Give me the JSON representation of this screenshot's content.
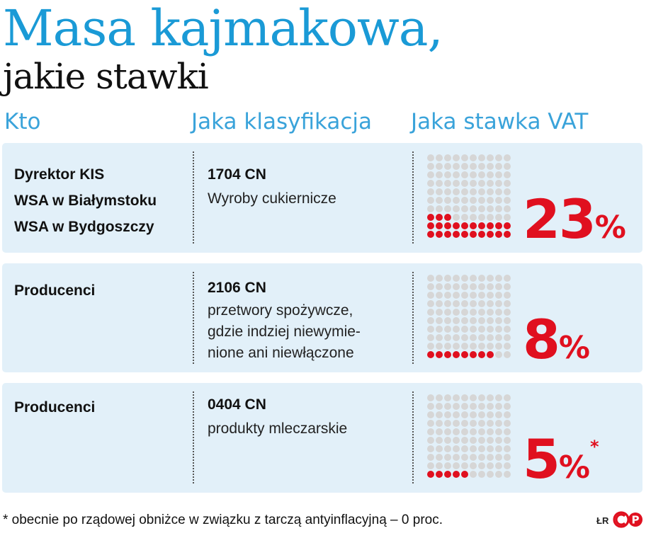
{
  "title": {
    "line1": "Masa kajmakowa,",
    "line2": "jakie stawki"
  },
  "columns": {
    "who": "Kto",
    "classification": "Jaka klasyfikacja",
    "vat": "Jaka stawka VAT"
  },
  "rows": [
    {
      "who": [
        "Dyrektor KIS",
        "WSA w Białymstoku",
        "WSA w Bydgoszczy"
      ],
      "code": "1704 CN",
      "description": [
        "Wyroby cukiernicze"
      ],
      "rate_number": "23",
      "rate_symbol": "%",
      "rate_note": "",
      "rate_value": 23
    },
    {
      "who": [
        "Producenci"
      ],
      "code": "2106 CN",
      "description": [
        "przetwory spożywcze,",
        "gdzie indziej niewymie-",
        "nione ani niewłączone"
      ],
      "rate_number": "8",
      "rate_symbol": "%",
      "rate_note": "",
      "rate_value": 8
    },
    {
      "who": [
        "Producenci"
      ],
      "code": "0404 CN",
      "description": [
        "produkty mleczarskie"
      ],
      "rate_number": "5",
      "rate_symbol": "%",
      "rate_note": "*",
      "rate_value": 5
    }
  ],
  "footnote": "* obecnie po rządowej obniżce w związku z tarczą antyinflacyjną – 0 proc.",
  "credit": "ŁR",
  "colors": {
    "title": "#1a9ad6",
    "header": "#3aa3da",
    "row_bg": "#e2f0f9",
    "red": "#e0101f",
    "gray_dot": "#d6d6d6"
  }
}
